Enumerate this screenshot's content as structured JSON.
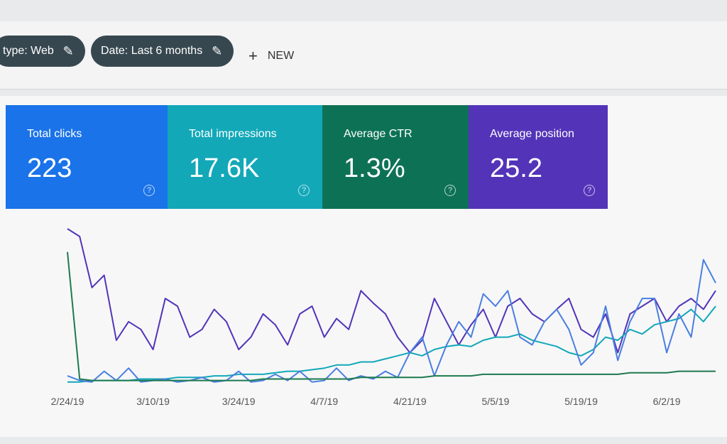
{
  "filters": [
    "type: Web",
    "Date: Last 6 months"
  ],
  "new_button": "NEW",
  "metrics": [
    {
      "label": "Total clicks",
      "value": "223",
      "color": "#1a73e8"
    },
    {
      "label": "Total impressions",
      "value": "17.6K",
      "color": "#12a8b8"
    },
    {
      "label": "Average CTR",
      "value": "1.3%",
      "color": "#0d7255"
    },
    {
      "label": "Average position",
      "value": "25.2",
      "color": "#5334b8"
    }
  ],
  "chart_data": {
    "type": "line",
    "categories": [
      "2/24/19",
      null,
      null,
      null,
      null,
      null,
      null,
      "3/10/19",
      null,
      null,
      null,
      null,
      null,
      null,
      "3/24/19",
      null,
      null,
      null,
      null,
      null,
      null,
      "4/7/19",
      null,
      null,
      null,
      null,
      null,
      null,
      "4/21/19",
      null,
      null,
      null,
      null,
      null,
      null,
      "5/5/19",
      null,
      null,
      null,
      null,
      null,
      null,
      "5/19/19",
      null,
      null,
      null,
      null,
      null,
      null,
      "6/2/19",
      null,
      null,
      null,
      null
    ],
    "ylim": [
      0,
      100
    ],
    "series": [
      {
        "color": "#5334b8",
        "values": [
          100,
          95,
          62,
          70,
          28,
          40,
          35,
          22,
          55,
          50,
          30,
          35,
          48,
          40,
          22,
          30,
          45,
          38,
          25,
          45,
          50,
          30,
          42,
          35,
          60,
          52,
          45,
          30,
          20,
          28,
          55,
          40,
          25,
          38,
          48,
          30,
          50,
          55,
          45,
          40,
          48,
          55,
          35,
          30,
          45,
          20,
          45,
          50,
          55,
          40,
          50,
          55,
          48,
          60
        ]
      },
      {
        "color": "#12a8b8",
        "values": [
          1,
          1,
          2,
          2,
          2,
          2,
          3,
          3,
          3,
          4,
          4,
          4,
          5,
          5,
          6,
          6,
          6,
          7,
          8,
          8,
          9,
          10,
          12,
          12,
          14,
          14,
          16,
          18,
          20,
          18,
          22,
          24,
          25,
          24,
          28,
          30,
          30,
          32,
          28,
          26,
          24,
          20,
          18,
          22,
          30,
          28,
          35,
          32,
          38,
          40,
          42,
          48,
          40,
          50
        ]
      },
      {
        "color": "#4a7fe0",
        "values": [
          5,
          2,
          1,
          8,
          2,
          10,
          1,
          2,
          3,
          1,
          2,
          4,
          1,
          2,
          8,
          1,
          2,
          6,
          2,
          8,
          1,
          2,
          10,
          2,
          5,
          3,
          8,
          4,
          20,
          30,
          5,
          25,
          40,
          30,
          58,
          50,
          60,
          30,
          25,
          40,
          48,
          35,
          12,
          20,
          50,
          15,
          40,
          55,
          55,
          20,
          45,
          30,
          80,
          65
        ]
      },
      {
        "color": "#1e7a4e",
        "values": [
          85,
          3,
          2,
          2,
          2,
          2,
          2,
          2,
          2,
          2,
          2,
          2,
          2,
          2,
          2,
          2,
          3,
          3,
          3,
          3,
          3,
          3,
          3,
          3,
          4,
          4,
          4,
          4,
          4,
          4,
          5,
          5,
          5,
          5,
          6,
          6,
          6,
          6,
          6,
          6,
          6,
          6,
          6,
          6,
          6,
          6,
          7,
          7,
          7,
          7,
          8,
          8,
          8,
          8
        ]
      }
    ]
  }
}
